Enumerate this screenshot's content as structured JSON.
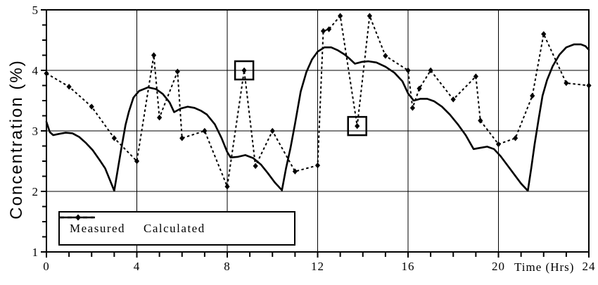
{
  "figure": {
    "background": "#ffffff",
    "line_color": "#000000"
  },
  "chart_data": {
    "type": "line",
    "title": "",
    "xlabel": "Time (Hrs)",
    "ylabel": "Concentration (%)",
    "xlim": [
      0,
      24
    ],
    "ylim": [
      1,
      5
    ],
    "x_major_ticks": [
      0,
      4,
      8,
      12,
      16,
      20,
      24
    ],
    "x_tick_labels": [
      "0",
      "4",
      "8",
      "12",
      "16",
      "20",
      "24"
    ],
    "x_minor_step": 1,
    "y_major_ticks": [
      1,
      2,
      3,
      4,
      5
    ],
    "y_tick_labels": [
      "1",
      "2",
      "3",
      "4",
      "5"
    ],
    "y_minor_step": 0.25,
    "grid": true,
    "legend_position": "inside-bottom-left",
    "series": [
      {
        "name": "Measured",
        "style": "dashed",
        "marker": "diamond",
        "color": "#000000",
        "points": [
          [
            0,
            3.95
          ],
          [
            1,
            3.73
          ],
          [
            2,
            3.4
          ],
          [
            3,
            2.88
          ],
          [
            4,
            2.5
          ],
          [
            4.75,
            4.25
          ],
          [
            5,
            3.22
          ],
          [
            5.8,
            3.98
          ],
          [
            6,
            2.88
          ],
          [
            7,
            3.0
          ],
          [
            8,
            2.08
          ],
          [
            8.75,
            4.0
          ],
          [
            9.25,
            2.42
          ],
          [
            10,
            3.0
          ],
          [
            11,
            2.33
          ],
          [
            12,
            2.43
          ],
          [
            12.25,
            4.65
          ],
          [
            12.5,
            4.68
          ],
          [
            13,
            4.9
          ],
          [
            13.75,
            3.08
          ],
          [
            14.3,
            4.9
          ],
          [
            15,
            4.24
          ],
          [
            16,
            4.0
          ],
          [
            16.2,
            3.38
          ],
          [
            16.5,
            3.7
          ],
          [
            17,
            4.0
          ],
          [
            18,
            3.52
          ],
          [
            19,
            3.9
          ],
          [
            19.2,
            3.17
          ],
          [
            20,
            2.78
          ],
          [
            20.75,
            2.88
          ],
          [
            21.5,
            3.58
          ],
          [
            22,
            4.6
          ],
          [
            23,
            3.79
          ],
          [
            24,
            3.75
          ]
        ],
        "highlighted_points": [
          [
            8.75,
            4.0
          ],
          [
            13.75,
            3.08
          ]
        ]
      },
      {
        "name": "Calculated",
        "style": "solid",
        "marker": "none",
        "color": "#000000",
        "points": [
          [
            0,
            3.15
          ],
          [
            0.15,
            2.98
          ],
          [
            0.3,
            2.93
          ],
          [
            0.55,
            2.95
          ],
          [
            0.85,
            2.97
          ],
          [
            1.15,
            2.96
          ],
          [
            1.45,
            2.9
          ],
          [
            1.75,
            2.8
          ],
          [
            2.05,
            2.68
          ],
          [
            2.35,
            2.52
          ],
          [
            2.6,
            2.38
          ],
          [
            2.85,
            2.15
          ],
          [
            3.0,
            2.01
          ],
          [
            3.12,
            2.28
          ],
          [
            3.3,
            2.68
          ],
          [
            3.5,
            3.1
          ],
          [
            3.65,
            3.32
          ],
          [
            3.85,
            3.55
          ],
          [
            4.1,
            3.66
          ],
          [
            4.5,
            3.72
          ],
          [
            4.85,
            3.69
          ],
          [
            5.15,
            3.61
          ],
          [
            5.45,
            3.47
          ],
          [
            5.65,
            3.31
          ],
          [
            5.95,
            3.37
          ],
          [
            6.25,
            3.4
          ],
          [
            6.55,
            3.38
          ],
          [
            6.85,
            3.33
          ],
          [
            7.1,
            3.27
          ],
          [
            7.45,
            3.11
          ],
          [
            7.75,
            2.88
          ],
          [
            8.0,
            2.65
          ],
          [
            8.15,
            2.56
          ],
          [
            8.45,
            2.57
          ],
          [
            8.8,
            2.6
          ],
          [
            9.15,
            2.55
          ],
          [
            9.5,
            2.44
          ],
          [
            9.8,
            2.3
          ],
          [
            10.1,
            2.15
          ],
          [
            10.42,
            2.02
          ],
          [
            10.6,
            2.38
          ],
          [
            10.8,
            2.72
          ],
          [
            11.0,
            3.12
          ],
          [
            11.25,
            3.65
          ],
          [
            11.5,
            3.97
          ],
          [
            11.75,
            4.18
          ],
          [
            12.0,
            4.31
          ],
          [
            12.3,
            4.38
          ],
          [
            12.6,
            4.38
          ],
          [
            12.9,
            4.33
          ],
          [
            13.2,
            4.26
          ],
          [
            13.45,
            4.18
          ],
          [
            13.65,
            4.11
          ],
          [
            13.95,
            4.14
          ],
          [
            14.25,
            4.15
          ],
          [
            14.6,
            4.13
          ],
          [
            15.0,
            4.06
          ],
          [
            15.4,
            3.96
          ],
          [
            15.75,
            3.82
          ],
          [
            16.0,
            3.62
          ],
          [
            16.25,
            3.5
          ],
          [
            16.55,
            3.53
          ],
          [
            16.85,
            3.53
          ],
          [
            17.15,
            3.49
          ],
          [
            17.5,
            3.4
          ],
          [
            17.85,
            3.27
          ],
          [
            18.2,
            3.11
          ],
          [
            18.55,
            2.93
          ],
          [
            18.9,
            2.7
          ],
          [
            19.2,
            2.72
          ],
          [
            19.5,
            2.74
          ],
          [
            19.8,
            2.7
          ],
          [
            20.1,
            2.58
          ],
          [
            20.4,
            2.43
          ],
          [
            20.7,
            2.28
          ],
          [
            21.0,
            2.13
          ],
          [
            21.3,
            2.01
          ],
          [
            21.45,
            2.38
          ],
          [
            21.6,
            2.78
          ],
          [
            21.78,
            3.2
          ],
          [
            21.95,
            3.58
          ],
          [
            22.15,
            3.84
          ],
          [
            22.4,
            4.07
          ],
          [
            22.7,
            4.26
          ],
          [
            23.0,
            4.38
          ],
          [
            23.35,
            4.43
          ],
          [
            23.65,
            4.43
          ],
          [
            23.85,
            4.4
          ],
          [
            24,
            4.34
          ]
        ]
      }
    ]
  }
}
